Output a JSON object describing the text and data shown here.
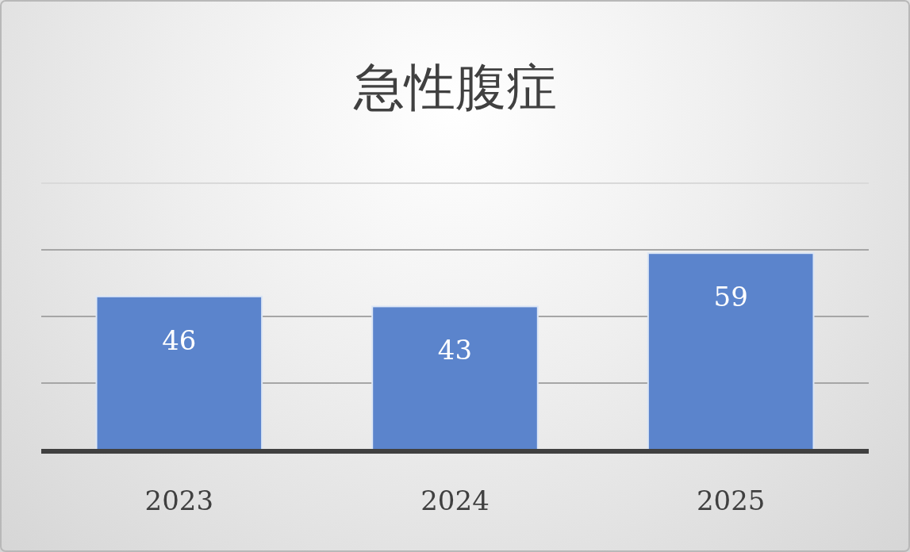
{
  "chart_data": {
    "type": "bar",
    "title": "急性腹症",
    "categories": [
      "2023",
      "2024",
      "2025"
    ],
    "values": [
      46,
      43,
      59
    ],
    "color": "#5b84cc",
    "ylim": [
      0,
      80
    ],
    "yticks": [
      {
        "value": 20,
        "label": null
      },
      {
        "value": 40,
        "label": null
      },
      {
        "value": 60,
        "label": null
      },
      {
        "value": 80,
        "label": null
      }
    ],
    "grid": "y",
    "data_labels": true,
    "tick_labels": "x"
  }
}
